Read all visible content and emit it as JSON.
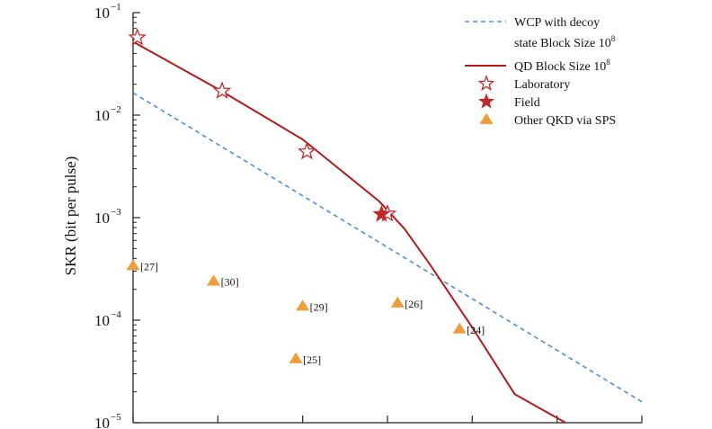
{
  "chart_data": {
    "type": "scatter",
    "title": "",
    "ylabel": "SKR (bit per pulse)",
    "xlabel": "",
    "yscale": "log",
    "ylim": [
      1e-05,
      0.1
    ],
    "y_ticks": [
      {
        "base": "10",
        "exp": "−1",
        "value": 0.1
      },
      {
        "base": "10",
        "exp": "−2",
        "value": 0.01
      },
      {
        "base": "10",
        "exp": "−3",
        "value": 0.001
      },
      {
        "base": "10",
        "exp": "−4",
        "value": 0.0001
      },
      {
        "base": "10",
        "exp": "−5",
        "value": 1e-05
      }
    ],
    "x_tick_count": 7,
    "x_tick_labels_visible": false,
    "grid": false,
    "legend_position": "top-right",
    "legend": [
      {
        "key": "wcp",
        "lines": [
          {
            "text": "WCP with decoy",
            "sup": ""
          },
          {
            "text": "state Block Size 10",
            "sup": "8"
          }
        ]
      },
      {
        "key": "qd",
        "lines": [
          {
            "text": "QD Block Size 10",
            "sup": "8"
          }
        ]
      },
      {
        "key": "lab",
        "lines": [
          {
            "text": "Laboratory",
            "sup": ""
          }
        ]
      },
      {
        "key": "field",
        "lines": [
          {
            "text": "Field",
            "sup": ""
          }
        ]
      },
      {
        "key": "other",
        "lines": [
          {
            "text": "Other QKD via SPS",
            "sup": ""
          }
        ]
      }
    ],
    "series": [
      {
        "key": "wcp",
        "kind": "line",
        "style": "dashed",
        "color": "#4a90d9",
        "x": [
          0,
          6
        ],
        "y": [
          0.0165,
          1.6e-05
        ]
      },
      {
        "key": "qd",
        "kind": "line",
        "style": "solid",
        "color": "#b01c1c",
        "x": [
          0,
          1,
          2,
          2.9,
          3.2,
          3.5,
          4,
          4.5,
          5.1
        ],
        "y": [
          0.052,
          0.018,
          0.0058,
          0.00145,
          0.00078,
          0.00035,
          8.5e-05,
          1.9e-05,
          1e-05
        ]
      },
      {
        "key": "lab",
        "kind": "marker",
        "marker": "star-open",
        "color": "#c0282c",
        "x": [
          0.05,
          1.05,
          2.05,
          3.0
        ],
        "y": [
          0.057,
          0.0172,
          0.0044,
          0.00109
        ]
      },
      {
        "key": "field",
        "kind": "marker",
        "marker": "star-filled",
        "color": "#c0282c",
        "x": [
          2.93
        ],
        "y": [
          0.00108
        ]
      },
      {
        "key": "other",
        "kind": "marker",
        "marker": "triangle",
        "color": "#ef9e3c",
        "x": [
          0,
          0.95,
          2.0,
          1.92,
          3.12,
          3.85
        ],
        "y": [
          0.00034,
          0.00024,
          0.000137,
          4.2e-05,
          0.000147,
          8.2e-05
        ],
        "labels": [
          "[27]",
          "[30]",
          "[29]",
          "[25]",
          "[26]",
          "[24]"
        ]
      }
    ]
  }
}
